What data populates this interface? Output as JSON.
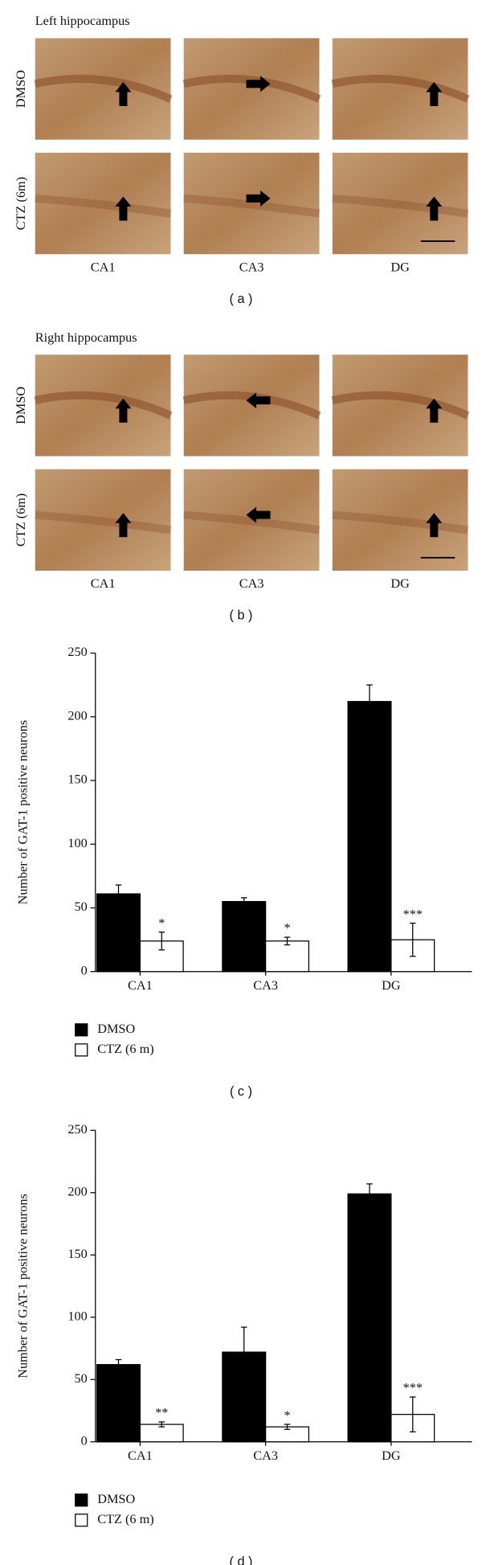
{
  "panels": [
    {
      "title": "Left hippocampus",
      "rows": [
        "DMSO",
        "CTZ (6m)"
      ],
      "columns": [
        "CA1",
        "CA3",
        "DG"
      ],
      "caption": "( a )"
    },
    {
      "title": "Right hippocampus",
      "rows": [
        "DMSO",
        "CTZ (6m)"
      ],
      "columns": [
        "CA1",
        "CA3",
        "DG"
      ],
      "caption": "( b )"
    }
  ],
  "chart_data": [
    {
      "type": "bar",
      "ylabel": "Number of GAT-1 positive neurons",
      "categories": [
        "CA1",
        "CA3",
        "DG"
      ],
      "series": [
        {
          "name": "DMSO",
          "color": "#000000",
          "values": [
            61,
            55,
            212
          ],
          "errors": [
            7,
            3,
            13
          ]
        },
        {
          "name": "CTZ (6 m)",
          "color": "#ffffff",
          "values": [
            24,
            24,
            25
          ],
          "errors": [
            7,
            3,
            13
          ]
        }
      ],
      "annotations": [
        "*",
        "*",
        "***"
      ],
      "ylim": [
        0,
        250
      ],
      "yticks": [
        0,
        50,
        100,
        150,
        200,
        250
      ],
      "caption": "( c )"
    },
    {
      "type": "bar",
      "ylabel": "Number of GAT-1 positive neurons",
      "categories": [
        "CA1",
        "CA3",
        "DG"
      ],
      "series": [
        {
          "name": "DMSO",
          "color": "#000000",
          "values": [
            62,
            72,
            199
          ],
          "errors": [
            4,
            20,
            8
          ]
        },
        {
          "name": "CTZ (6 m)",
          "color": "#ffffff",
          "values": [
            14,
            12,
            22
          ],
          "errors": [
            2,
            2,
            14
          ]
        }
      ],
      "annotations": [
        "**",
        "*",
        "***"
      ],
      "ylim": [
        0,
        250
      ],
      "yticks": [
        0,
        50,
        100,
        150,
        200,
        250
      ],
      "caption": "( d )"
    }
  ]
}
